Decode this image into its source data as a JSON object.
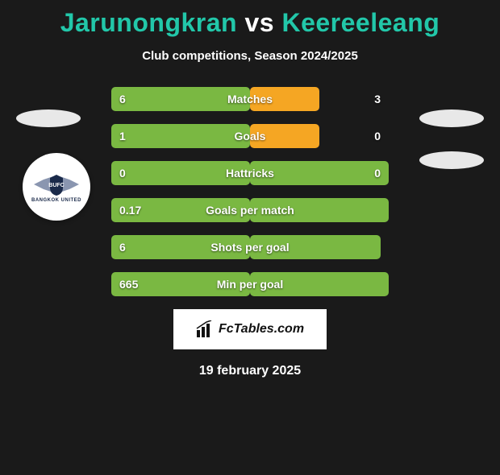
{
  "title": {
    "player1": "Jarunongkran",
    "vs": "vs",
    "player2": "Keereeleang",
    "player1_color": "#22c7a9",
    "player2_color": "#22c7a9",
    "vs_color": "#ffffff"
  },
  "subtitle": "Club competitions, Season 2024/2025",
  "background_color": "#1a1a1a",
  "bar_colors": {
    "green": "#7ab842",
    "orange": "#f5a623"
  },
  "rows": [
    {
      "label": "Matches",
      "left": "6",
      "right": "3",
      "left_w": 172,
      "right_w": 86,
      "right_color": "orange"
    },
    {
      "label": "Goals",
      "left": "1",
      "right": "0",
      "left_w": 172,
      "right_w": 86,
      "right_color": "orange"
    },
    {
      "label": "Hattricks",
      "left": "0",
      "right": "0",
      "left_w": 172,
      "right_w": 172,
      "right_color": "green"
    },
    {
      "label": "Goals per match",
      "left": "0.17",
      "right": "",
      "left_w": 172,
      "right_w": 172,
      "right_color": "green"
    },
    {
      "label": "Shots per goal",
      "left": "6",
      "right": "",
      "left_w": 172,
      "right_w": 162,
      "right_color": "green"
    },
    {
      "label": "Min per goal",
      "left": "665",
      "right": "",
      "left_w": 172,
      "right_w": 172,
      "right_color": "green"
    }
  ],
  "badge": {
    "text": "BANGKOK UNITED",
    "wing_color": "#8a96b0",
    "shield_color": "#1a2a4a"
  },
  "brand": "FcTables.com",
  "date": "19 february 2025"
}
